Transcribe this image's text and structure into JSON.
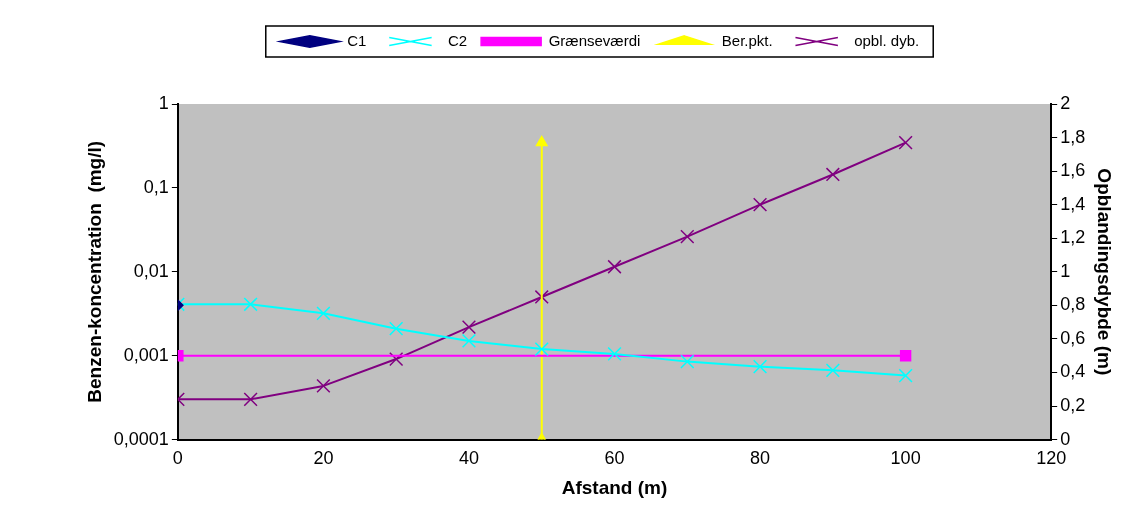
{
  "chart_data": {
    "type": "line",
    "xlabel": "Afstand (m)",
    "ylabel": "Benzen-koncentration  (mg/l)",
    "y2label": "Opblandingsdybde (m)",
    "xlim": [
      0,
      120
    ],
    "xticks": [
      0,
      20,
      40,
      60,
      80,
      100,
      120
    ],
    "ylim": [
      0.0001,
      1
    ],
    "yticks": [
      {
        "value": 1,
        "label": "1"
      },
      {
        "value": 0.1,
        "label": "0,1"
      },
      {
        "value": 0.01,
        "label": "0,01"
      },
      {
        "value": 0.001,
        "label": "0,001"
      },
      {
        "value": 0.0001,
        "label": "0,0001"
      }
    ],
    "y2lim": [
      0,
      2
    ],
    "y2ticks": [
      0,
      {
        "value": 0.2,
        "label": "0,2"
      },
      {
        "value": 0.4,
        "label": "0,4"
      },
      {
        "value": 0.6,
        "label": "0,6"
      },
      {
        "value": 0.8,
        "label": "0,8"
      },
      1,
      {
        "value": 1.2,
        "label": "1,2"
      },
      {
        "value": 1.4,
        "label": "1,4"
      },
      {
        "value": 1.6,
        "label": "1,6"
      },
      {
        "value": 1.8,
        "label": "1,8"
      },
      2
    ],
    "log": "y",
    "grid": false,
    "legend": "top",
    "series": [
      {
        "name": "C1",
        "color": "#000080",
        "marker": "diamond",
        "x": [
          0
        ],
        "values": [
          0.004
        ]
      },
      {
        "name": "C2",
        "color": "#00ffff",
        "marker": "cross",
        "x": [
          0,
          10,
          20,
          30,
          40,
          50,
          60,
          70,
          80,
          90,
          100
        ],
        "values": [
          0.0041,
          0.0041,
          0.0032,
          0.0021,
          0.0015,
          0.0012,
          0.00105,
          0.00085,
          0.00074,
          0.00067,
          0.00058
        ]
      },
      {
        "name": "Grænseværdi",
        "color": "#ff00ff",
        "marker": "square",
        "x": [
          0,
          100
        ],
        "values": [
          0.001,
          0.001
        ]
      },
      {
        "name": "Ber.pkt.",
        "color": "#ffff00",
        "marker": "triangle",
        "axis": "y2",
        "x": [
          50,
          50
        ],
        "values": [
          0,
          1.77
        ]
      },
      {
        "name": "opbl. dyb.",
        "color": "#800080",
        "marker": "cross",
        "axis": "y2",
        "x": [
          0,
          10,
          20,
          30,
          40,
          50,
          60,
          70,
          80,
          90,
          100
        ],
        "values": [
          0.24,
          0.24,
          0.32,
          0.48,
          0.67,
          0.85,
          1.03,
          1.21,
          1.4,
          1.58,
          1.77
        ]
      }
    ]
  }
}
